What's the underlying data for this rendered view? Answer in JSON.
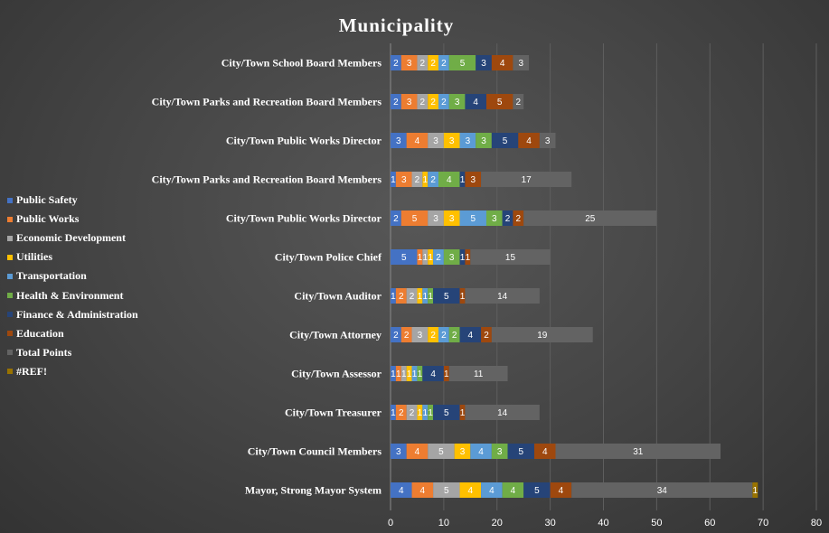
{
  "chart_data": {
    "type": "bar",
    "orientation": "horizontal",
    "stacked": true,
    "title": "Municipality",
    "xlabel": "",
    "ylabel": "",
    "xlim": [
      0,
      80
    ],
    "xticks": [
      0,
      10,
      20,
      30,
      40,
      50,
      60,
      70,
      80
    ],
    "grid": "vertical",
    "legend_position": "left",
    "categories": [
      "City/Town School Board Members",
      "City/Town Parks and Recreation Board Members",
      "City/Town Public Works Director",
      "City/Town Parks and Recreation Board Members",
      "City/Town Public Works Director",
      "City/Town Police Chief",
      "City/Town Auditor",
      "City/Town Attorney",
      "City/Town Assessor",
      "City/Town Treasurer",
      "City/Town Council Members",
      "Mayor, Strong Mayor System"
    ],
    "series": [
      {
        "name": "Public Safety",
        "color": "#4472C4",
        "values": [
          2,
          2,
          3,
          1,
          2,
          5,
          1,
          2,
          1,
          1,
          3,
          4
        ]
      },
      {
        "name": "Public Works",
        "color": "#ED7D31",
        "values": [
          3,
          3,
          4,
          3,
          5,
          1,
          2,
          2,
          1,
          2,
          4,
          4
        ]
      },
      {
        "name": "Economic Development",
        "color": "#A5A5A5",
        "values": [
          2,
          2,
          3,
          2,
          3,
          1,
          2,
          3,
          1,
          2,
          5,
          5
        ]
      },
      {
        "name": "Utilities",
        "color": "#FFC000",
        "values": [
          2,
          2,
          3,
          1,
          3,
          1,
          1,
          2,
          1,
          1,
          3,
          4
        ]
      },
      {
        "name": "Transportation",
        "color": "#5B9BD5",
        "values": [
          2,
          2,
          3,
          2,
          5,
          2,
          1,
          2,
          1,
          1,
          4,
          4
        ]
      },
      {
        "name": "Health & Environment",
        "color": "#70AD47",
        "values": [
          5,
          3,
          3,
          4,
          3,
          3,
          1,
          2,
          1,
          1,
          3,
          4
        ]
      },
      {
        "name": "Finance & Administration",
        "color": "#264478",
        "values": [
          3,
          4,
          5,
          1,
          2,
          1,
          5,
          4,
          4,
          5,
          5,
          5
        ]
      },
      {
        "name": "Education",
        "color": "#9E480E",
        "values": [
          4,
          5,
          4,
          3,
          2,
          1,
          1,
          2,
          1,
          1,
          4,
          4
        ]
      },
      {
        "name": "Total Points",
        "color": "#636363",
        "values": [
          3,
          2,
          3,
          17,
          25,
          15,
          14,
          19,
          11,
          14,
          31,
          34
        ]
      },
      {
        "name": "#REF!",
        "color": "#997300",
        "values": [
          0,
          0,
          0,
          0,
          0,
          0,
          0,
          0,
          0,
          0,
          0,
          1
        ]
      }
    ]
  }
}
